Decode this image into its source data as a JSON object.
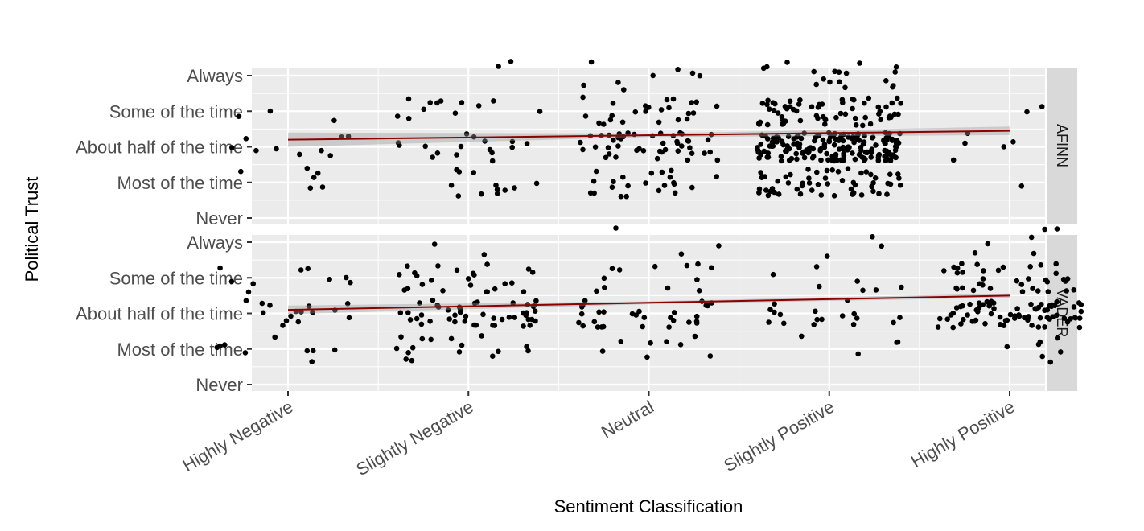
{
  "chart_data": {
    "type": "scatter",
    "jitter": true,
    "xlabel": "Sentiment Classification",
    "ylabel": "Political Trust",
    "x_categories": [
      "Highly Negative",
      "Slightly Negative",
      "Neutral",
      "Slightly Positive",
      "Highly Positive"
    ],
    "y_categories": [
      "Never",
      "Most of the time",
      "About half of the time",
      "Some of the time",
      "Always"
    ],
    "grid": true,
    "trend_line": {
      "method": "linear",
      "color": "#8b0000",
      "confidence_band": true
    },
    "point_color": "#000000",
    "panels": [
      {
        "name": "AFINN",
        "trend": {
          "start": 2.2,
          "end": 2.45
        },
        "band": {
          "start_half_width": 0.2,
          "mid_half_width": 0.05,
          "end_half_width": 0.12
        },
        "groups": [
          {
            "x_category": "Highly Negative",
            "points": {
              "Most of the time": 6,
              "About half of the time": 9,
              "Some of the time": 3
            }
          },
          {
            "x_category": "Slightly Negative",
            "points": {
              "Most of the time": 12,
              "About half of the time": 16,
              "Some of the time": 12,
              "Always": 2
            }
          },
          {
            "x_category": "Neutral",
            "points": {
              "Most of the time": 22,
              "About half of the time": 46,
              "Some of the time": 24,
              "Always": 8
            }
          },
          {
            "x_category": "Slightly Positive",
            "points": {
              "Most of the time": 55,
              "About half of the time": 175,
              "Some of the time": 64,
              "Always": 18
            }
          },
          {
            "x_category": "Highly Positive",
            "points": {
              "Most of the time": 1,
              "About half of the time": 5,
              "Some of the time": 2
            }
          }
        ]
      },
      {
        "name": "VADER",
        "trend": {
          "start": 2.1,
          "end": 2.5
        },
        "band": {
          "start_half_width": 0.12,
          "mid_half_width": 0.04,
          "end_half_width": 0.06
        },
        "groups": [
          {
            "x_category": "Highly Negative",
            "points": {
              "Most of the time": 9,
              "About half of the time": 15,
              "Some of the time": 9
            }
          },
          {
            "x_category": "Slightly Negative",
            "points": {
              "Most of the time": 16,
              "About half of the time": 46,
              "Some of the time": 24,
              "Always": 2
            }
          },
          {
            "x_category": "Neutral",
            "points": {
              "Most of the time": 8,
              "About half of the time": 30,
              "Some of the time": 12,
              "Always": 3
            }
          },
          {
            "x_category": "Slightly Positive",
            "points": {
              "Most of the time": 4,
              "About half of the time": 17,
              "Some of the time": 7,
              "Always": 3
            }
          },
          {
            "x_category": "Highly Positive",
            "points": {
              "Most of the time": 7,
              "About half of the time": 75,
              "Some of the time": 36,
              "Always": 6
            }
          }
        ]
      }
    ]
  }
}
